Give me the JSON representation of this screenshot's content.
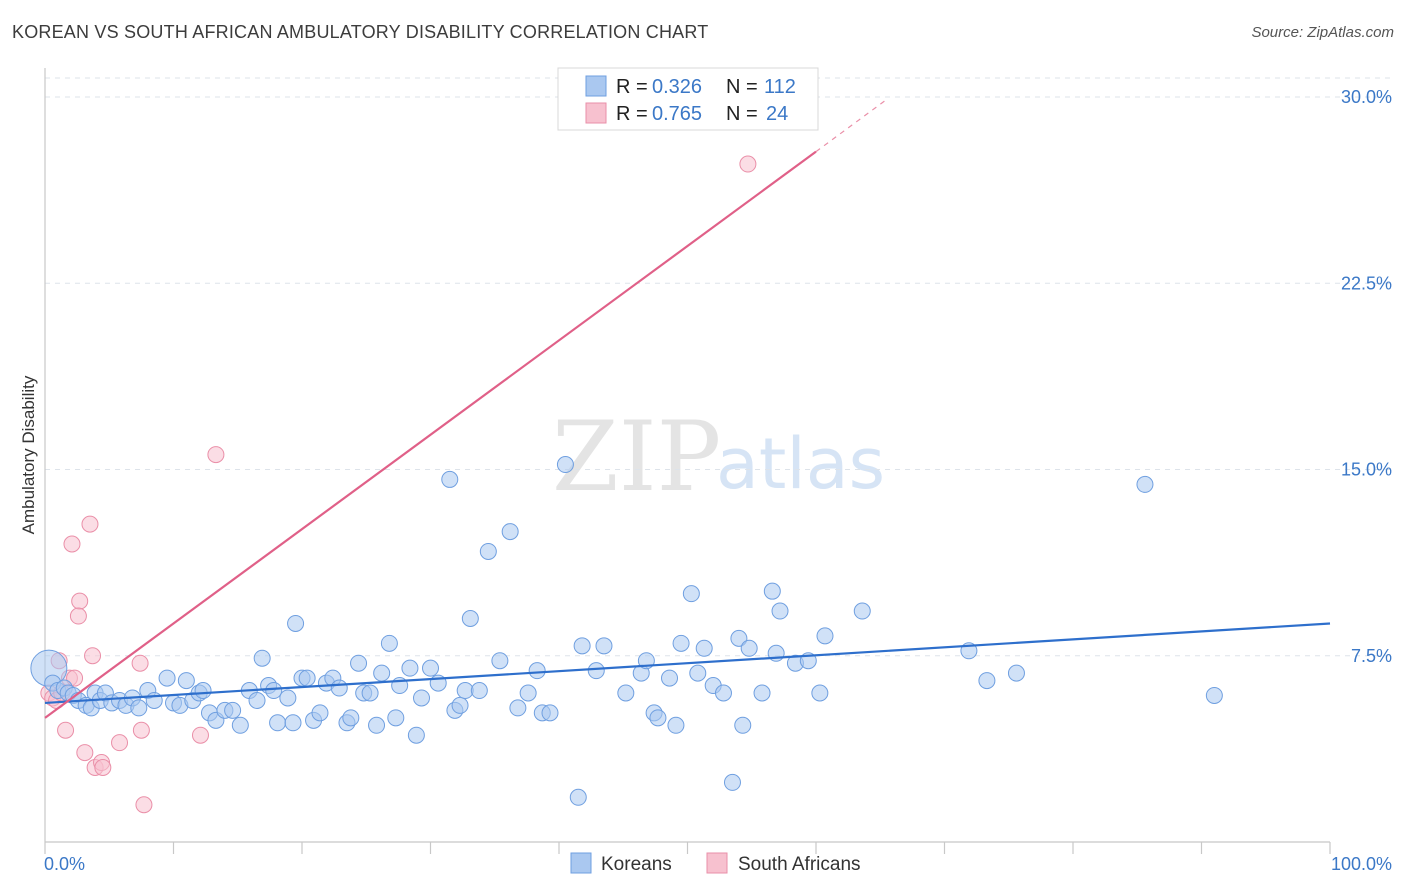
{
  "title": "KOREAN VS SOUTH AFRICAN AMBULATORY DISABILITY CORRELATION CHART",
  "source": "Source: ZipAtlas.com",
  "watermark": {
    "zip": "ZIP",
    "atlas": "atlas"
  },
  "colors": {
    "korean_fill": "#aac8f0",
    "korean_stroke": "#6f9fe0",
    "korean_line": "#2e6fcc",
    "sa_fill": "#f7c1cf",
    "sa_stroke": "#ea8fa8",
    "sa_line": "#e06088",
    "grid": "#dde3ea",
    "tick_label": "#3b78c7"
  },
  "legend": {
    "korean": {
      "r_label": "R =",
      "r_value": "0.326",
      "n_label": "N =",
      "n_value": "112"
    },
    "sa": {
      "r_label": "R =",
      "r_value": "0.765",
      "n_label": "N =",
      "n_value": "24"
    }
  },
  "chart_data": {
    "type": "scatter",
    "title": "KOREAN VS SOUTH AFRICAN AMBULATORY DISABILITY CORRELATION CHART",
    "xlabel": "",
    "ylabel": "Ambulatory Disability",
    "xlim": [
      0,
      100
    ],
    "ylim": [
      0,
      31
    ],
    "x_tick_labels": {
      "left": "0.0%",
      "right": "100.0%"
    },
    "y_ticks": [
      {
        "value": 7.5,
        "label": "7.5%"
      },
      {
        "value": 15.0,
        "label": "15.0%"
      },
      {
        "value": 22.5,
        "label": "22.5%"
      },
      {
        "value": 30.0,
        "label": "30.0%"
      }
    ],
    "series": [
      {
        "name": "Koreans",
        "trend": {
          "x": [
            0,
            100
          ],
          "y": [
            5.6,
            8.8
          ]
        },
        "points": [
          [
            0.3,
            7.0
          ],
          [
            0.6,
            6.4
          ],
          [
            1.0,
            6.1
          ],
          [
            1.5,
            6.2
          ],
          [
            1.8,
            6.0
          ],
          [
            2.2,
            5.9
          ],
          [
            2.6,
            5.7
          ],
          [
            3.2,
            5.5
          ],
          [
            3.6,
            5.4
          ],
          [
            3.9,
            6.0
          ],
          [
            4.3,
            5.7
          ],
          [
            4.7,
            6.0
          ],
          [
            5.2,
            5.6
          ],
          [
            5.8,
            5.7
          ],
          [
            6.3,
            5.5
          ],
          [
            6.8,
            5.8
          ],
          [
            7.3,
            5.4
          ],
          [
            8.0,
            6.1
          ],
          [
            8.5,
            5.7
          ],
          [
            9.5,
            6.6
          ],
          [
            10.0,
            5.6
          ],
          [
            10.5,
            5.5
          ],
          [
            11.0,
            6.5
          ],
          [
            11.5,
            5.7
          ],
          [
            12.0,
            6.0
          ],
          [
            12.3,
            6.1
          ],
          [
            12.8,
            5.2
          ],
          [
            13.3,
            4.9
          ],
          [
            14.0,
            5.3
          ],
          [
            14.6,
            5.3
          ],
          [
            15.2,
            4.7
          ],
          [
            15.9,
            6.1
          ],
          [
            16.5,
            5.7
          ],
          [
            16.9,
            7.4
          ],
          [
            17.4,
            6.3
          ],
          [
            17.8,
            6.1
          ],
          [
            18.1,
            4.8
          ],
          [
            18.9,
            5.8
          ],
          [
            19.3,
            4.8
          ],
          [
            19.5,
            8.8
          ],
          [
            20.0,
            6.6
          ],
          [
            20.4,
            6.6
          ],
          [
            20.9,
            4.9
          ],
          [
            21.4,
            5.2
          ],
          [
            21.9,
            6.4
          ],
          [
            22.4,
            6.6
          ],
          [
            22.9,
            6.2
          ],
          [
            23.5,
            4.8
          ],
          [
            23.8,
            5.0
          ],
          [
            24.4,
            7.2
          ],
          [
            24.8,
            6.0
          ],
          [
            25.3,
            6.0
          ],
          [
            25.8,
            4.7
          ],
          [
            26.2,
            6.8
          ],
          [
            26.8,
            8.0
          ],
          [
            27.3,
            5.0
          ],
          [
            27.6,
            6.3
          ],
          [
            28.4,
            7.0
          ],
          [
            28.9,
            4.3
          ],
          [
            29.3,
            5.8
          ],
          [
            30.0,
            7.0
          ],
          [
            30.6,
            6.4
          ],
          [
            31.5,
            14.6
          ],
          [
            31.9,
            5.3
          ],
          [
            32.3,
            5.5
          ],
          [
            32.7,
            6.1
          ],
          [
            33.8,
            6.1
          ],
          [
            33.1,
            9.0
          ],
          [
            34.5,
            11.7
          ],
          [
            35.4,
            7.3
          ],
          [
            36.2,
            12.5
          ],
          [
            36.8,
            5.4
          ],
          [
            37.6,
            6.0
          ],
          [
            38.3,
            6.9
          ],
          [
            38.7,
            5.2
          ],
          [
            39.3,
            5.2
          ],
          [
            40.5,
            15.2
          ],
          [
            41.5,
            1.8
          ],
          [
            41.8,
            7.9
          ],
          [
            42.9,
            6.9
          ],
          [
            43.5,
            7.9
          ],
          [
            45.2,
            6.0
          ],
          [
            46.4,
            6.8
          ],
          [
            46.8,
            7.3
          ],
          [
            47.4,
            5.2
          ],
          [
            47.7,
            5.0
          ],
          [
            48.6,
            6.6
          ],
          [
            49.1,
            4.7
          ],
          [
            49.5,
            8.0
          ],
          [
            50.3,
            10.0
          ],
          [
            50.8,
            6.8
          ],
          [
            51.3,
            7.8
          ],
          [
            52.0,
            6.3
          ],
          [
            52.8,
            6.0
          ],
          [
            53.5,
            2.4
          ],
          [
            54.0,
            8.2
          ],
          [
            54.3,
            4.7
          ],
          [
            54.8,
            7.8
          ],
          [
            55.8,
            6.0
          ],
          [
            56.6,
            10.1
          ],
          [
            56.9,
            7.6
          ],
          [
            57.2,
            9.3
          ],
          [
            58.4,
            7.2
          ],
          [
            59.4,
            7.3
          ],
          [
            60.3,
            6.0
          ],
          [
            60.7,
            8.3
          ],
          [
            63.6,
            9.3
          ],
          [
            71.9,
            7.7
          ],
          [
            73.3,
            6.5
          ],
          [
            75.6,
            6.8
          ],
          [
            85.6,
            14.4
          ],
          [
            91.0,
            5.9
          ]
        ]
      },
      {
        "name": "South Africans",
        "trend": {
          "x": [
            0,
            60
          ],
          "y": [
            5.0,
            27.8
          ]
        },
        "trend_extension": {
          "x": [
            60,
            65.5
          ],
          "y": [
            27.8,
            29.9
          ]
        },
        "points": [
          [
            0.3,
            6.0
          ],
          [
            0.6,
            5.8
          ],
          [
            0.9,
            5.7
          ],
          [
            1.1,
            7.3
          ],
          [
            1.3,
            6.0
          ],
          [
            1.6,
            4.5
          ],
          [
            1.9,
            6.6
          ],
          [
            2.1,
            12.0
          ],
          [
            2.3,
            6.6
          ],
          [
            2.7,
            9.7
          ],
          [
            2.6,
            9.1
          ],
          [
            3.1,
            3.6
          ],
          [
            3.5,
            12.8
          ],
          [
            3.7,
            7.5
          ],
          [
            3.9,
            3.0
          ],
          [
            4.4,
            3.2
          ],
          [
            4.5,
            3.0
          ],
          [
            5.8,
            4.0
          ],
          [
            7.4,
            7.2
          ],
          [
            7.5,
            4.5
          ],
          [
            7.7,
            1.5
          ],
          [
            12.1,
            4.3
          ],
          [
            13.3,
            15.6
          ],
          [
            54.7,
            27.3
          ]
        ]
      }
    ],
    "legend": [
      "Koreans",
      "South Africans"
    ]
  }
}
